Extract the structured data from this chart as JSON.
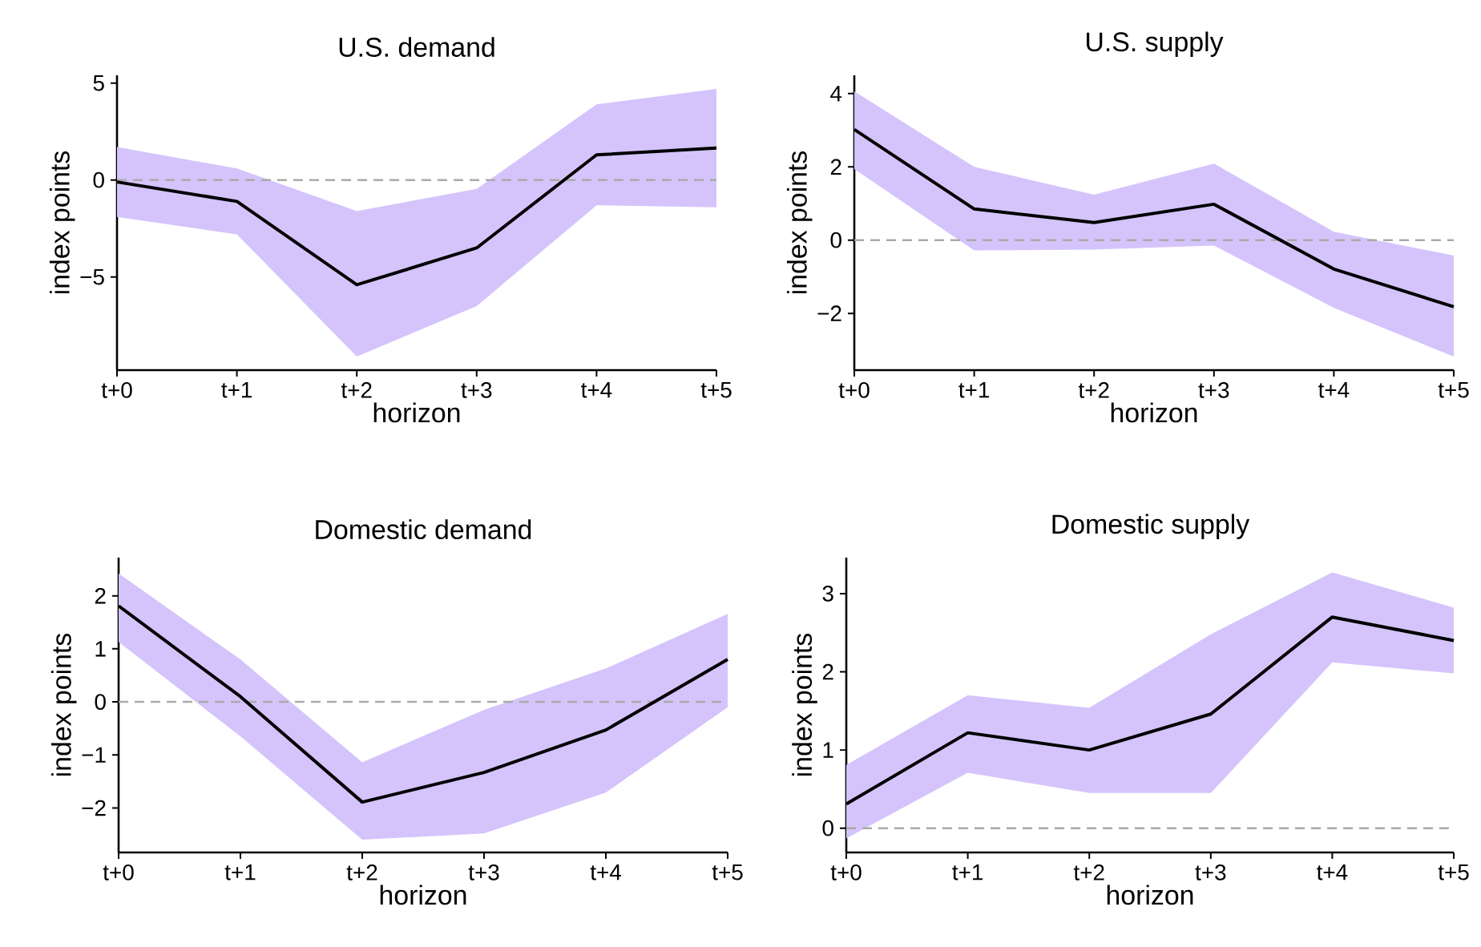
{
  "chart_data": [
    {
      "type": "line",
      "title": "U.S. demand",
      "xlabel": "horizon",
      "ylabel": "index points",
      "categories": [
        "t+0",
        "t+1",
        "t+2",
        "t+3",
        "t+4",
        "t+5"
      ],
      "ylim": [
        -9.8,
        5.4
      ],
      "yticks": [
        5,
        0,
        {
          "value": -5,
          "label": "−5"
        }
      ],
      "series": [
        {
          "color": "#000000",
          "values": [
            -0.1,
            -1.1,
            -5.4,
            -3.5,
            1.3,
            1.65
          ],
          "lower": [
            -1.9,
            -2.8,
            -9.1,
            -6.5,
            -1.3,
            -1.4
          ],
          "upper": [
            1.7,
            0.6,
            -1.6,
            -0.45,
            3.9,
            4.7
          ]
        }
      ],
      "ref_lines": [
        {
          "axis": "y",
          "value": 0,
          "color": "#aaaaaa",
          "line_style": "dashed"
        }
      ]
    },
    {
      "type": "line",
      "title": "U.S. supply",
      "xlabel": "horizon",
      "ylabel": "index points",
      "categories": [
        "t+0",
        "t+1",
        "t+2",
        "t+3",
        "t+4",
        "t+5"
      ],
      "ylim": [
        -3.55,
        4.5
      ],
      "yticks": [
        4,
        2,
        0,
        {
          "value": -2,
          "label": "−2"
        }
      ],
      "series": [
        {
          "color": "#000000",
          "values": [
            3.02,
            0.85,
            0.48,
            0.98,
            -0.79,
            -1.82
          ],
          "lower": [
            1.94,
            -0.28,
            -0.26,
            -0.15,
            -1.85,
            -3.18
          ],
          "upper": [
            4.06,
            2.0,
            1.24,
            2.09,
            0.23,
            -0.42
          ]
        }
      ],
      "ref_lines": [
        {
          "axis": "y",
          "value": 0,
          "color": "#aaaaaa",
          "line_style": "dashed"
        }
      ]
    },
    {
      "type": "line",
      "title": "Domestic demand",
      "xlabel": "horizon",
      "ylabel": "index points",
      "categories": [
        "t+0",
        "t+1",
        "t+2",
        "t+3",
        "t+4",
        "t+5"
      ],
      "ylim": [
        -2.84,
        2.72
      ],
      "yticks": [
        2,
        1,
        0,
        {
          "value": -1,
          "label": "−1"
        },
        {
          "value": -2,
          "label": "−2"
        }
      ],
      "series": [
        {
          "color": "#000000",
          "values": [
            1.81,
            0.1,
            -1.89,
            -1.33,
            -0.53,
            0.8
          ],
          "lower": [
            1.13,
            -0.65,
            -2.6,
            -2.48,
            -1.71,
            -0.1
          ],
          "upper": [
            2.42,
            0.8,
            -1.14,
            -0.15,
            0.63,
            1.66
          ]
        }
      ],
      "ref_lines": [
        {
          "axis": "y",
          "value": 0,
          "color": "#aaaaaa",
          "line_style": "dashed"
        }
      ]
    },
    {
      "type": "line",
      "title": "Domestic supply",
      "xlabel": "horizon",
      "ylabel": "index points",
      "categories": [
        "t+0",
        "t+1",
        "t+2",
        "t+3",
        "t+4",
        "t+5"
      ],
      "ylim": [
        -0.31,
        3.46
      ],
      "yticks": [
        3,
        2,
        1,
        0
      ],
      "series": [
        {
          "color": "#000000",
          "values": [
            0.31,
            1.22,
            1.0,
            1.46,
            2.7,
            2.4
          ],
          "lower": [
            -0.13,
            0.71,
            0.45,
            0.45,
            2.12,
            1.98
          ],
          "upper": [
            0.81,
            1.7,
            1.54,
            2.48,
            3.27,
            2.82
          ]
        }
      ],
      "ref_lines": [
        {
          "axis": "y",
          "value": 0,
          "color": "#aaaaaa",
          "line_style": "dashed"
        }
      ]
    }
  ]
}
